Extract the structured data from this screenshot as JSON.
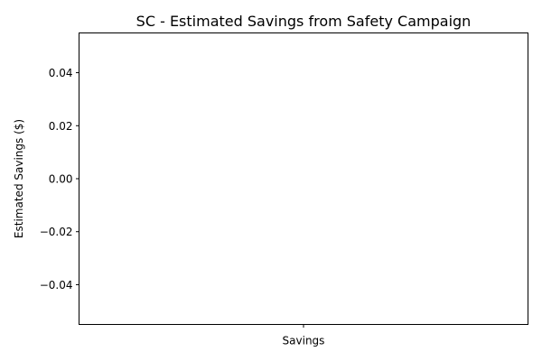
{
  "chart_data": {
    "type": "bar",
    "title": "SC - Estimated Savings from Safety Campaign",
    "xlabel": "",
    "ylabel": "Estimated Savings ($)",
    "categories": [
      "Savings"
    ],
    "values": [
      0
    ],
    "ylim": [
      -0.055,
      0.055
    ],
    "yticks": [
      -0.04,
      -0.02,
      0.0,
      0.02,
      0.04
    ],
    "ytick_labels": [
      "−0.04",
      "−0.02",
      "0.00",
      "0.02",
      "0.04"
    ],
    "grid": false,
    "legend": false
  }
}
